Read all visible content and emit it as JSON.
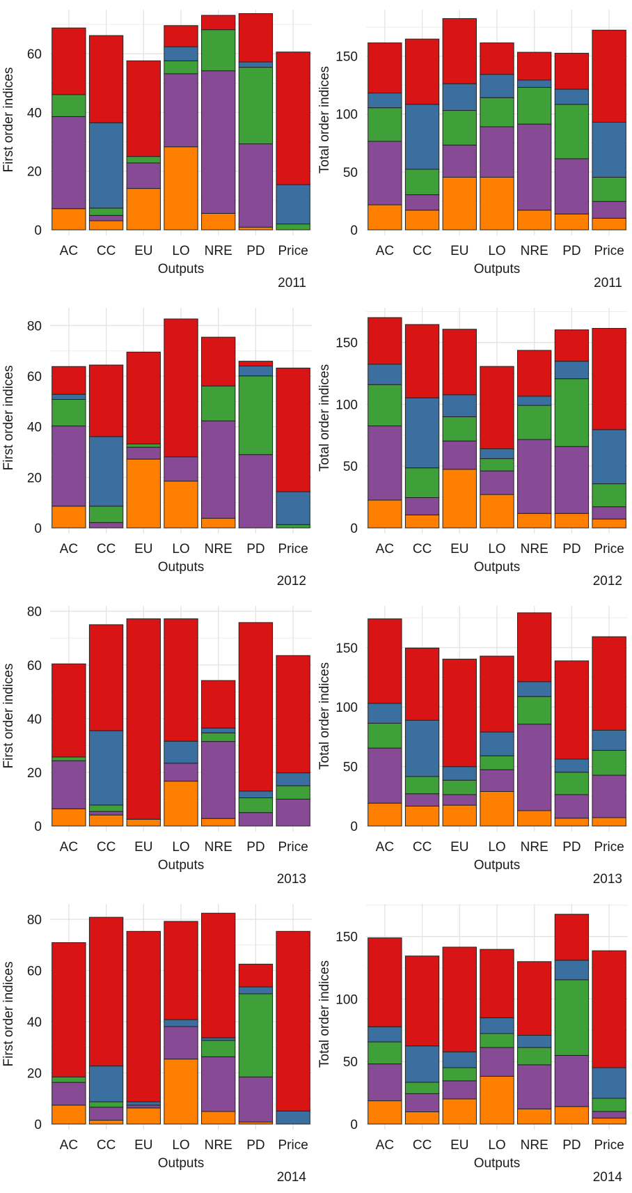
{
  "palette": {
    "orange": "#ff7f00",
    "purple": "#874a94",
    "green": "#3fa03a",
    "blue": "#3b6fa0",
    "red": "#d91414",
    "grid": "#e3e3e3",
    "outline": "#222222"
  },
  "chart_data": [
    {
      "type": "bar",
      "stacked": true,
      "year_label": "2011",
      "xlabel": "Outputs",
      "ylabel": "First order indices",
      "categories": [
        "AC",
        "CC",
        "EU",
        "LO",
        "NRE",
        "PD",
        "Price"
      ],
      "ylim": [
        0,
        75
      ],
      "yticks": [
        0,
        20,
        40,
        60
      ],
      "grid": true,
      "series": [
        {
          "name": "orange",
          "values": [
            7.2,
            3.1,
            14.1,
            28.3,
            5.6,
            0.9,
            0
          ]
        },
        {
          "name": "purple",
          "values": [
            31.4,
            1.8,
            8.7,
            24.9,
            48.6,
            28.4,
            0
          ]
        },
        {
          "name": "green",
          "values": [
            7.5,
            2.5,
            2.2,
            4.4,
            14.0,
            26.1,
            2.0
          ]
        },
        {
          "name": "blue",
          "values": [
            0,
            29.1,
            0,
            4.8,
            0,
            1.8,
            13.4
          ]
        },
        {
          "name": "red",
          "values": [
            22.7,
            29.7,
            32.6,
            7.2,
            4.9,
            16.5,
            45.2
          ]
        }
      ]
    },
    {
      "type": "bar",
      "stacked": true,
      "year_label": "2011",
      "xlabel": "Outputs",
      "ylabel": "Total order indices",
      "categories": [
        "AC",
        "CC",
        "EU",
        "LO",
        "NRE",
        "PD",
        "Price"
      ],
      "ylim": [
        0,
        190
      ],
      "yticks": [
        0,
        50,
        100,
        150
      ],
      "grid": true,
      "series": [
        {
          "name": "orange",
          "values": [
            21.6,
            17.0,
            45.4,
            45.4,
            17.0,
            13.7,
            10.0
          ]
        },
        {
          "name": "purple",
          "values": [
            54.8,
            13.3,
            27.8,
            43.6,
            74.3,
            47.7,
            14.5
          ]
        },
        {
          "name": "green",
          "values": [
            29.0,
            22.0,
            29.9,
            25.1,
            31.7,
            46.9,
            20.9
          ]
        },
        {
          "name": "blue",
          "values": [
            12.7,
            56.0,
            23.0,
            20.1,
            6.3,
            13.1,
            47.5
          ]
        },
        {
          "name": "red",
          "values": [
            43.3,
            56.4,
            56.3,
            27.2,
            24.0,
            31.1,
            79.5
          ]
        }
      ]
    },
    {
      "type": "bar",
      "stacked": true,
      "year_label": "2012",
      "xlabel": "Outputs",
      "ylabel": "First order indices",
      "categories": [
        "AC",
        "CC",
        "EU",
        "LO",
        "NRE",
        "PD",
        "Price"
      ],
      "ylim": [
        0,
        87
      ],
      "yticks": [
        0,
        20,
        40,
        60,
        80
      ],
      "grid": true,
      "series": [
        {
          "name": "orange",
          "values": [
            8.6,
            0,
            27.2,
            18.5,
            3.8,
            0,
            0
          ]
        },
        {
          "name": "purple",
          "values": [
            31.7,
            2.1,
            4.7,
            9.6,
            38.5,
            29.0,
            0
          ]
        },
        {
          "name": "green",
          "values": [
            10.5,
            6.5,
            1.3,
            0,
            13.8,
            31.1,
            1.3
          ]
        },
        {
          "name": "blue",
          "values": [
            2.0,
            27.5,
            0,
            0,
            0,
            3.9,
            13.0
          ]
        },
        {
          "name": "red",
          "values": [
            11.0,
            28.3,
            36.3,
            54.5,
            19.3,
            1.9,
            48.9
          ]
        }
      ]
    },
    {
      "type": "bar",
      "stacked": true,
      "year_label": "2012",
      "xlabel": "Outputs",
      "ylabel": "Total order indices",
      "categories": [
        "AC",
        "CC",
        "EU",
        "LO",
        "NRE",
        "PD",
        "Price"
      ],
      "ylim": [
        0,
        178
      ],
      "yticks": [
        0,
        50,
        100,
        150
      ],
      "grid": true,
      "series": [
        {
          "name": "orange",
          "values": [
            22.5,
            10.5,
            47.4,
            27.0,
            11.7,
            11.7,
            7.2
          ]
        },
        {
          "name": "purple",
          "values": [
            60.0,
            14.0,
            22.9,
            19.1,
            59.8,
            54.1,
            9.9
          ]
        },
        {
          "name": "green",
          "values": [
            33.4,
            24.1,
            19.6,
            9.9,
            27.6,
            54.9,
            18.6
          ]
        },
        {
          "name": "blue",
          "values": [
            16.5,
            56.6,
            17.8,
            8.0,
            7.4,
            14.1,
            43.8
          ]
        },
        {
          "name": "red",
          "values": [
            37.7,
            59.3,
            53.0,
            66.6,
            37.1,
            25.4,
            81.9
          ]
        }
      ]
    },
    {
      "type": "bar",
      "stacked": true,
      "year_label": "2013",
      "xlabel": "Outputs",
      "ylabel": "First order indices",
      "categories": [
        "AC",
        "CC",
        "EU",
        "LO",
        "NRE",
        "PD",
        "Price"
      ],
      "ylim": [
        0,
        82
      ],
      "yticks": [
        0,
        20,
        40,
        60,
        80
      ],
      "grid": true,
      "series": [
        {
          "name": "orange",
          "values": [
            6.4,
            4.1,
            2.5,
            16.7,
            2.8,
            0,
            0
          ]
        },
        {
          "name": "purple",
          "values": [
            17.9,
            1.3,
            0,
            6.7,
            28.7,
            5.0,
            10.0
          ]
        },
        {
          "name": "green",
          "values": [
            1.4,
            2.4,
            0,
            0,
            3.2,
            5.5,
            5.0
          ]
        },
        {
          "name": "blue",
          "values": [
            0,
            27.7,
            0,
            8.2,
            1.8,
            2.5,
            4.8
          ]
        },
        {
          "name": "red",
          "values": [
            34.7,
            39.5,
            74.7,
            45.6,
            17.7,
            62.8,
            43.7
          ]
        }
      ]
    },
    {
      "type": "bar",
      "stacked": true,
      "year_label": "2013",
      "xlabel": "Outputs",
      "ylabel": "Total order indices",
      "categories": [
        "AC",
        "CC",
        "EU",
        "LO",
        "NRE",
        "PD",
        "Price"
      ],
      "ylim": [
        0,
        185
      ],
      "yticks": [
        0,
        50,
        100,
        150
      ],
      "grid": true,
      "series": [
        {
          "name": "orange",
          "values": [
            19.2,
            16.7,
            17.5,
            29.0,
            12.9,
            6.6,
            7.0
          ]
        },
        {
          "name": "purple",
          "values": [
            46.3,
            10.4,
            8.9,
            18.3,
            72.7,
            19.8,
            35.7
          ]
        },
        {
          "name": "green",
          "values": [
            20.9,
            14.5,
            12.1,
            11.7,
            23.2,
            18.8,
            20.9
          ]
        },
        {
          "name": "blue",
          "values": [
            16.7,
            47.3,
            11.4,
            20.0,
            12.5,
            11.0,
            16.9
          ]
        },
        {
          "name": "red",
          "values": [
            71.0,
            60.7,
            90.4,
            63.8,
            57.9,
            82.6,
            78.6
          ]
        }
      ]
    },
    {
      "type": "bar",
      "stacked": true,
      "year_label": "2014",
      "xlabel": "Outputs",
      "ylabel": "First order indices",
      "categories": [
        "AC",
        "CC",
        "EU",
        "LO",
        "NRE",
        "PD",
        "Price"
      ],
      "ylim": [
        0,
        86
      ],
      "yticks": [
        0,
        20,
        40,
        60,
        80
      ],
      "grid": true,
      "series": [
        {
          "name": "orange",
          "values": [
            7.4,
            1.5,
            6.3,
            25.4,
            4.9,
            0.8,
            0
          ]
        },
        {
          "name": "purple",
          "values": [
            8.9,
            5.1,
            1.1,
            12.7,
            21.4,
            17.6,
            0
          ]
        },
        {
          "name": "green",
          "values": [
            2.1,
            2.1,
            0,
            0,
            6.4,
            32.5,
            0
          ]
        },
        {
          "name": "blue",
          "values": [
            0,
            14.0,
            1.3,
            2.7,
            1.0,
            2.7,
            5.1
          ]
        },
        {
          "name": "red",
          "values": [
            52.5,
            58.1,
            66.6,
            38.4,
            48.7,
            8.9,
            70.2
          ]
        }
      ]
    },
    {
      "type": "bar",
      "stacked": true,
      "year_label": "2014",
      "xlabel": "Outputs",
      "ylabel": "Total order indices",
      "categories": [
        "AC",
        "CC",
        "EU",
        "LO",
        "NRE",
        "PD",
        "Price"
      ],
      "ylim": [
        0,
        176
      ],
      "yticks": [
        0,
        50,
        100,
        150
      ],
      "grid": true,
      "series": [
        {
          "name": "orange",
          "values": [
            18.6,
            9.8,
            20.1,
            38.2,
            12.1,
            14.0,
            4.8
          ]
        },
        {
          "name": "purple",
          "values": [
            29.5,
            14.5,
            14.5,
            23.0,
            35.3,
            40.9,
            5.3
          ]
        },
        {
          "name": "green",
          "values": [
            17.6,
            9.1,
            10.5,
            11.2,
            13.8,
            60.5,
            10.5
          ]
        },
        {
          "name": "blue",
          "values": [
            12.1,
            29.1,
            12.6,
            12.6,
            9.8,
            15.6,
            24.5
          ]
        },
        {
          "name": "red",
          "values": [
            71.1,
            71.9,
            83.8,
            54.7,
            58.9,
            36.8,
            93.5
          ]
        }
      ]
    }
  ]
}
